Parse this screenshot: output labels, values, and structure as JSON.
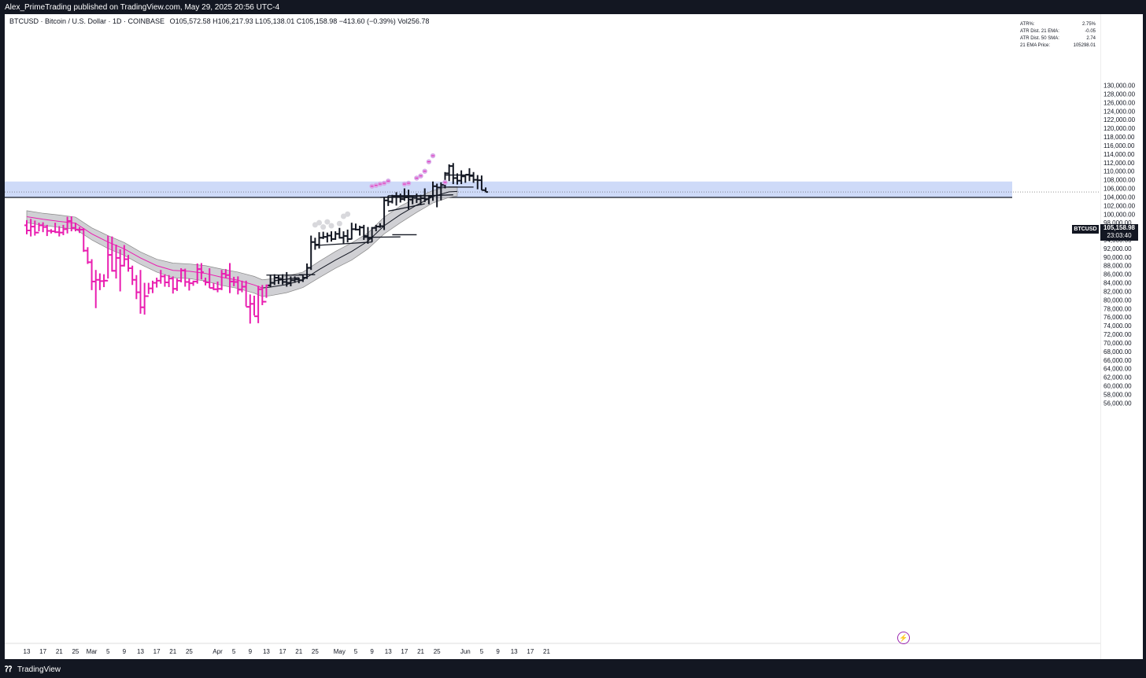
{
  "header": {
    "publisher": "Alex_PrimeTrading published on TradingView.com, May 29, 2025 20:56 UTC-4"
  },
  "chart_info": {
    "symbol_line": "BTCUSD · Bitcoin / U.S. Dollar · 1D · COINBASE",
    "ohlc": "O105,572.58 H106,217.93 L105,138.01 C105,158.98 −413.60 (−0.39%) Vol256.78"
  },
  "stats_table": [
    {
      "label": "ATR%:",
      "value": "2.75%"
    },
    {
      "label": "ATR Dist. 21 EMA:",
      "value": "-0.05"
    },
    {
      "label": "ATR Dist. 50 SMA:",
      "value": "2.74"
    },
    {
      "label": "21 EMA Price:",
      "value": "105298.01"
    }
  ],
  "price_tag": {
    "symbol": "BTCUSD",
    "price": "105,158.98",
    "countdown": "23:03:40"
  },
  "footer": {
    "brand": "TradingView"
  },
  "colors": {
    "magenta": "#e91eb0",
    "black": "#131722",
    "zone": "#c5d3f7",
    "band": "#c8c8cc",
    "dot": "#d8d8dc",
    "dot_purple": "#d8a8e8"
  },
  "chart_data": {
    "type": "ohlc-bar",
    "title": "",
    "xlabel": "",
    "ylabel": "",
    "ylim": [
      55000,
      131000
    ],
    "y_ticks": [
      56000,
      58000,
      60000,
      62000,
      64000,
      66000,
      68000,
      70000,
      72000,
      74000,
      76000,
      78000,
      80000,
      82000,
      84000,
      86000,
      88000,
      90000,
      92000,
      94000,
      96000,
      98000,
      100000,
      102000,
      104000,
      106000,
      108000,
      110000,
      112000,
      114000,
      116000,
      118000,
      120000,
      122000,
      124000,
      126000,
      128000,
      130000
    ],
    "y_tick_labels": [
      "56,000.00",
      "58,000.00",
      "60,000.00",
      "62,000.00",
      "64,000.00",
      "66,000.00",
      "68,000.00",
      "70,000.00",
      "72,000.00",
      "74,000.00",
      "76,000.00",
      "78,000.00",
      "80,000.00",
      "82,000.00",
      "84,000.00",
      "86,000.00",
      "88,000.00",
      "90,000.00",
      "92,000.00",
      "94,000.00",
      "96,000.00",
      "98,000.00",
      "100,000.00",
      "102,000.00",
      "104,000.00",
      "106,000.00",
      "108,000.00",
      "110,000.00",
      "112,000.00",
      "114,000.00",
      "116,000.00",
      "118,000.00",
      "120,000.00",
      "122,000.00",
      "124,000.00",
      "126,000.00",
      "128,000.00",
      "130,000.00"
    ],
    "x_ticks": [
      {
        "day": 0,
        "label": "13"
      },
      {
        "day": 4,
        "label": "17"
      },
      {
        "day": 8,
        "label": "21"
      },
      {
        "day": 12,
        "label": "25"
      },
      {
        "day": 16,
        "label": "Mar"
      },
      {
        "day": 20,
        "label": "5"
      },
      {
        "day": 24,
        "label": "9"
      },
      {
        "day": 28,
        "label": "13"
      },
      {
        "day": 32,
        "label": "17"
      },
      {
        "day": 36,
        "label": "21"
      },
      {
        "day": 40,
        "label": "25"
      },
      {
        "day": 47,
        "label": "Apr"
      },
      {
        "day": 51,
        "label": "5"
      },
      {
        "day": 55,
        "label": "9"
      },
      {
        "day": 59,
        "label": "13"
      },
      {
        "day": 63,
        "label": "17"
      },
      {
        "day": 67,
        "label": "21"
      },
      {
        "day": 71,
        "label": "25"
      },
      {
        "day": 77,
        "label": "May"
      },
      {
        "day": 81,
        "label": "5"
      },
      {
        "day": 85,
        "label": "9"
      },
      {
        "day": 89,
        "label": "13"
      },
      {
        "day": 93,
        "label": "17"
      },
      {
        "day": 97,
        "label": "21"
      },
      {
        "day": 101,
        "label": "25"
      },
      {
        "day": 108,
        "label": "Jun"
      },
      {
        "day": 112,
        "label": "5"
      },
      {
        "day": 116,
        "label": "9"
      },
      {
        "day": 120,
        "label": "13"
      },
      {
        "day": 124,
        "label": "17"
      },
      {
        "day": 128,
        "label": "21"
      }
    ],
    "bars_magenta": [
      [
        97400,
        98600,
        95300,
        96200
      ],
      [
        96200,
        98900,
        94800,
        97100
      ],
      [
        97100,
        98500,
        95000,
        95700
      ],
      [
        95700,
        98000,
        96000,
        97400
      ],
      [
        97400,
        98100,
        95800,
        97000
      ],
      [
        97000,
        97500,
        94900,
        96100
      ],
      [
        96100,
        96500,
        95500,
        96000
      ],
      [
        96000,
        98000,
        95600,
        95800
      ],
      [
        95800,
        97200,
        94800,
        95700
      ],
      [
        95700,
        97500,
        95100,
        96500
      ],
      [
        96500,
        99400,
        95500,
        98400
      ],
      [
        98400,
        99500,
        96000,
        96800
      ],
      [
        96800,
        98000,
        96000,
        96400
      ],
      [
        96400,
        97000,
        95600,
        96400
      ],
      [
        96400,
        96700,
        91200,
        91500
      ],
      [
        91500,
        92300,
        88400,
        88800
      ],
      [
        88800,
        89500,
        82300,
        84300
      ],
      [
        84300,
        87000,
        78100,
        84700
      ],
      [
        84700,
        86200,
        82300,
        84400
      ],
      [
        84400,
        86000,
        83000,
        84500
      ],
      [
        84500,
        95000,
        85000,
        90500
      ],
      [
        90500,
        94800,
        86600,
        86800
      ],
      [
        86800,
        92900,
        85000,
        89800
      ],
      [
        89800,
        91800,
        82000,
        88000
      ],
      [
        88000,
        92800,
        87800,
        89500
      ],
      [
        89500,
        90500,
        86600,
        87400
      ],
      [
        87400,
        88000,
        83500,
        84700
      ],
      [
        84700,
        85800,
        80200,
        81800
      ],
      [
        81800,
        87000,
        76800,
        78300
      ],
      [
        78300,
        84000,
        76600,
        80900
      ],
      [
        80900,
        84000,
        81400,
        82700
      ],
      [
        82700,
        84500,
        81600,
        84000
      ],
      [
        84000,
        85200,
        82900,
        84500
      ],
      [
        84500,
        87000,
        83800,
        85500
      ],
      [
        85500,
        86000,
        83100,
        84100
      ],
      [
        84100,
        85800,
        83000,
        85000
      ],
      [
        85000,
        85500,
        81500,
        82600
      ],
      [
        82600,
        85000,
        82100,
        84500
      ],
      [
        84500,
        87400,
        84100,
        86900
      ],
      [
        86900,
        87300,
        83100,
        84200
      ],
      [
        84200,
        85000,
        82200,
        83900
      ],
      [
        83900,
        84500,
        83300,
        84300
      ],
      [
        84300,
        88500,
        83800,
        87200
      ],
      [
        87200,
        88600,
        84800,
        86500
      ],
      [
        84400,
        85200,
        83400,
        84100
      ],
      [
        84100,
        87400,
        82800,
        82800
      ],
      [
        82800,
        84000,
        82300,
        82500
      ],
      [
        82500,
        84300,
        81800,
        82600
      ],
      [
        82600,
        87000,
        82300,
        86100
      ],
      [
        86100,
        87200,
        85100,
        85800
      ],
      [
        85800,
        88600,
        81600,
        84300
      ],
      [
        84300,
        85400,
        83200,
        84200
      ],
      [
        84200,
        85500,
        81300,
        82400
      ],
      [
        82400,
        84500,
        81800,
        83100
      ],
      [
        83100,
        84500,
        78500,
        78400
      ],
      [
        78400,
        81300,
        74500,
        79100
      ],
      [
        79100,
        81000,
        76400,
        76200
      ],
      [
        76200,
        83300,
        74600,
        82500
      ],
      [
        82500,
        83500,
        78800,
        79600
      ],
      [
        79600,
        83600,
        80500,
        83400
      ]
    ],
    "bars_black": [
      [
        83400,
        85900,
        83000,
        84000
      ],
      [
        84000,
        86000,
        83500,
        85200
      ],
      [
        85200,
        85800,
        83700,
        84900
      ],
      [
        84900,
        86000,
        83600,
        84200
      ],
      [
        84200,
        86500,
        83100,
        84000
      ],
      [
        84000,
        85500,
        83200,
        84600
      ],
      [
        84600,
        85500,
        84000,
        84800
      ],
      [
        84800,
        85200,
        83900,
        84600
      ],
      [
        84600,
        85800,
        84200,
        85200
      ],
      [
        85200,
        88500,
        84900,
        87500
      ],
      [
        87500,
        95000,
        87000,
        93500
      ],
      [
        93500,
        94500,
        91700,
        92900
      ],
      [
        92900,
        95800,
        92000,
        94500
      ],
      [
        94500,
        95900,
        94200,
        94700
      ],
      [
        94700,
        95700,
        93400,
        95000
      ],
      [
        95000,
        96000,
        93600,
        94200
      ],
      [
        94200,
        96000,
        94000,
        95400
      ],
      [
        95400,
        96800,
        94300,
        94500
      ],
      [
        94500,
        96000,
        93000,
        94900
      ],
      [
        94900,
        96400,
        93400,
        94200
      ],
      [
        94200,
        98000,
        94100,
        96500
      ],
      [
        96500,
        97800,
        96200,
        96400
      ],
      [
        96400,
        97300,
        95000,
        96900
      ],
      [
        96900,
        97500,
        94000,
        94900
      ],
      [
        94900,
        97000,
        93100,
        94300
      ],
      [
        94300,
        97000,
        93500,
        96800
      ],
      [
        96800,
        97500,
        96000,
        97100
      ],
      [
        97100,
        97900,
        96800,
        97200
      ],
      [
        97200,
        104000,
        96300,
        103200
      ],
      [
        103200,
        104300,
        101900,
        102900
      ],
      [
        102900,
        104500,
        102500,
        104200
      ],
      [
        104200,
        105100,
        102000,
        104100
      ],
      [
        104100,
        104800,
        102700,
        103500
      ],
      [
        103500,
        106000,
        103100,
        103900
      ],
      [
        103900,
        105700,
        101100,
        103400
      ],
      [
        103400,
        104300,
        102300,
        103800
      ],
      [
        103800,
        104800,
        102600,
        103500
      ],
      [
        103500,
        104500,
        102100,
        103700
      ],
      [
        103700,
        106000,
        102800,
        103500
      ],
      [
        103500,
        104400,
        102300,
        104000
      ],
      [
        104000,
        107600,
        103100,
        106500
      ],
      [
        106500,
        107100,
        101600,
        106200
      ],
      [
        106200,
        107400,
        103200,
        106800
      ],
      [
        106800,
        109800,
        106000,
        109500
      ],
      [
        109500,
        111600,
        107700,
        111200
      ],
      [
        111200,
        111900,
        107000,
        108400
      ],
      [
        108400,
        109500,
        106900,
        107800
      ],
      [
        107800,
        110200,
        107000,
        108800
      ],
      [
        108800,
        109000,
        107300,
        109200
      ],
      [
        109200,
        110700,
        107700,
        108900
      ],
      [
        108900,
        109800,
        107300,
        108000
      ],
      [
        108000,
        109100,
        105800,
        107900
      ],
      [
        107900,
        109000,
        105600,
        105600
      ],
      [
        105572.58,
        106217.93,
        105138.01,
        105158.98
      ]
    ],
    "zone": {
      "top": 107600,
      "bottom": 103900
    },
    "support_line": 103900,
    "price_line": 105158.98,
    "band": [
      [
        0,
        100800,
        98000
      ],
      [
        4,
        100200,
        97400
      ],
      [
        8,
        99800,
        96900
      ],
      [
        12,
        99300,
        96500
      ],
      [
        16,
        96800,
        94000
      ],
      [
        20,
        95000,
        92000
      ],
      [
        24,
        93400,
        90400
      ],
      [
        28,
        91200,
        88300
      ],
      [
        32,
        89500,
        86500
      ],
      [
        36,
        88600,
        85200
      ],
      [
        40,
        88400,
        85000
      ],
      [
        44,
        88000,
        84400
      ],
      [
        48,
        87200,
        83400
      ],
      [
        52,
        86500,
        82700
      ],
      [
        56,
        85500,
        81600
      ],
      [
        58,
        84700,
        80800
      ],
      [
        60,
        84900,
        81000
      ],
      [
        64,
        85600,
        81700
      ],
      [
        68,
        86500,
        82900
      ],
      [
        72,
        89000,
        85200
      ],
      [
        76,
        91300,
        87400
      ],
      [
        80,
        93300,
        89300
      ],
      [
        84,
        95600,
        91900
      ],
      [
        88,
        99300,
        95400
      ],
      [
        92,
        101900,
        98000
      ],
      [
        96,
        103800,
        100400
      ],
      [
        100,
        105500,
        102600
      ],
      [
        104,
        106400,
        103900
      ],
      [
        106,
        106400,
        104200
      ]
    ],
    "ema": [
      [
        0,
        99400
      ],
      [
        4,
        98800
      ],
      [
        8,
        98300
      ],
      [
        12,
        97900
      ],
      [
        16,
        95400
      ],
      [
        20,
        93500
      ],
      [
        24,
        91900
      ],
      [
        28,
        89800
      ],
      [
        32,
        88000
      ],
      [
        36,
        86900
      ],
      [
        40,
        86700
      ],
      [
        44,
        86200
      ],
      [
        48,
        85300
      ],
      [
        52,
        84600
      ],
      [
        56,
        83500
      ],
      [
        58,
        82800
      ],
      [
        60,
        83000
      ],
      [
        64,
        83600
      ],
      [
        68,
        84700
      ],
      [
        72,
        87100
      ],
      [
        76,
        89300
      ],
      [
        80,
        91300
      ],
      [
        84,
        93700
      ],
      [
        88,
        97300
      ],
      [
        92,
        99900
      ],
      [
        96,
        102100
      ],
      [
        100,
        104100
      ],
      [
        104,
        105200
      ],
      [
        106,
        105300
      ]
    ],
    "trend_lines": [
      [
        59,
        85800,
        68,
        85800
      ],
      [
        61,
        84500,
        67,
        85200
      ],
      [
        67,
        85900,
        71,
        85900
      ],
      [
        71,
        92700,
        85,
        93500
      ],
      [
        83,
        94600,
        92,
        94700
      ],
      [
        90,
        95200,
        96,
        95200
      ],
      [
        89,
        100700,
        98,
        102400
      ],
      [
        89,
        104300,
        100,
        104300
      ],
      [
        87,
        103900,
        105,
        104500
      ],
      [
        103,
        109100,
        110,
        109100
      ],
      [
        102,
        106300,
        110,
        106300
      ]
    ],
    "dots_grey": [
      [
        71,
        97500
      ],
      [
        72,
        98000
      ],
      [
        73,
        97000
      ],
      [
        74,
        98200
      ],
      [
        75,
        97300
      ],
      [
        77,
        97800
      ],
      [
        78,
        99500
      ],
      [
        79,
        100000
      ]
    ],
    "dots_purple": [
      [
        85,
        106500
      ],
      [
        86,
        106700
      ],
      [
        87,
        107000
      ],
      [
        88,
        107200
      ],
      [
        89,
        107700
      ],
      [
        93,
        107000
      ],
      [
        94,
        107200
      ],
      [
        96,
        108400
      ],
      [
        97,
        108900
      ],
      [
        98,
        110000
      ],
      [
        99,
        112200
      ],
      [
        100,
        113600
      ],
      [
        103,
        107400
      ]
    ]
  }
}
